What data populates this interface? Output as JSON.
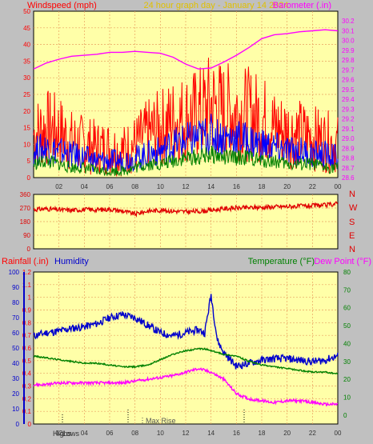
{
  "colors": {
    "plot_bg": "#ffffa8",
    "grid": "#e8a060",
    "frame_bg": "#c0c0c0",
    "wind_gust": "#ff0000",
    "wind_avg": "#0000ff",
    "wind_min": "#008000",
    "barometer": "#ff00ff",
    "direction": "#e00000",
    "rainfall": "#ff0000",
    "humidity": "#0000cc",
    "temperature": "#008000",
    "dew_point": "#ff00ff"
  },
  "top": {
    "left_title": "Windspeed (mph)",
    "center_title": "24 hour graph day - January 14 2024",
    "right_title": "Barometer (.in)"
  },
  "bottom": {
    "left_title_rain": "Rainfall (.in)",
    "left_title_hum": "Humidity",
    "right_title_temp": "Temperature (°F)",
    "right_title_dew": "Dew Point (°F)",
    "annotation_highs": "Highs",
    "annotation_lows": "Lows",
    "annotation_maxrise": "Max Rise"
  },
  "x_tick_labels": [
    "02",
    "04",
    "06",
    "08",
    "10",
    "12",
    "14",
    "16",
    "18",
    "20",
    "22",
    "00"
  ],
  "chart_data": [
    {
      "type": "line",
      "title": "24 hour graph day - January 14 2024",
      "ylabel": "Windspeed (mph)",
      "y2label": "Barometer (.in)",
      "x": [
        0,
        1,
        2,
        3,
        4,
        5,
        6,
        7,
        8,
        9,
        10,
        11,
        12,
        13,
        14,
        15,
        16,
        17,
        18,
        19,
        20,
        21,
        22,
        23,
        24
      ],
      "ylim": [
        0,
        50
      ],
      "yticks": [
        0,
        5,
        10,
        15,
        20,
        25,
        30,
        35,
        40,
        45,
        50
      ],
      "y2lim": [
        28.6,
        30.3
      ],
      "y2ticks": [
        28.6,
        28.7,
        28.8,
        28.9,
        29.0,
        29.1,
        29.2,
        29.3,
        29.4,
        29.5,
        29.6,
        29.7,
        29.8,
        29.9,
        30.0,
        30.1,
        30.2
      ],
      "series": [
        {
          "name": "Wind gust",
          "axis": "left",
          "values": [
            13,
            15,
            14,
            11,
            10,
            9,
            9,
            8,
            10,
            13,
            15,
            17,
            18,
            19,
            22,
            20,
            20,
            19,
            18,
            15,
            14,
            13,
            12,
            11,
            10
          ]
        },
        {
          "name": "Wind average",
          "axis": "left",
          "values": [
            8,
            9,
            8,
            7,
            6,
            5,
            5,
            5,
            6,
            7,
            8,
            10,
            11,
            12,
            13,
            12,
            12,
            11,
            10,
            9,
            8,
            8,
            7,
            7,
            6
          ]
        },
        {
          "name": "Wind minimum",
          "axis": "left",
          "values": [
            4,
            5,
            4,
            3,
            3,
            2,
            2,
            2,
            3,
            4,
            4,
            5,
            6,
            6,
            7,
            6,
            6,
            6,
            5,
            5,
            4,
            4,
            4,
            3,
            3
          ]
        },
        {
          "name": "Barometer",
          "axis": "right",
          "values": [
            29.71,
            29.77,
            29.81,
            29.84,
            29.85,
            29.86,
            29.88,
            29.88,
            29.89,
            29.88,
            29.87,
            29.83,
            29.76,
            29.71,
            29.72,
            29.78,
            29.85,
            29.93,
            30.02,
            30.06,
            30.07,
            30.09,
            30.1,
            30.11,
            30.1
          ]
        }
      ]
    },
    {
      "type": "line",
      "ylabel": "Wind direction",
      "x": [
        0,
        1,
        2,
        3,
        4,
        5,
        6,
        7,
        8,
        9,
        10,
        11,
        12,
        13,
        14,
        15,
        16,
        17,
        18,
        19,
        20,
        21,
        22,
        23,
        24
      ],
      "ylim": [
        0,
        360
      ],
      "yticks": [
        0,
        90,
        180,
        270,
        360
      ],
      "y2ticks": [
        "N",
        "E",
        "S",
        "W",
        "N"
      ],
      "series": [
        {
          "name": "Direction",
          "values": [
            260,
            265,
            258,
            255,
            260,
            258,
            262,
            250,
            230,
            250,
            255,
            250,
            245,
            248,
            255,
            265,
            270,
            272,
            275,
            278,
            280,
            282,
            285,
            288,
            300
          ]
        }
      ]
    },
    {
      "type": "line",
      "ylabel": "Rainfall (.in) / Humidity",
      "y2label": "Temperature (°F) / Dew Point (°F)",
      "x": [
        0,
        1,
        2,
        3,
        4,
        5,
        6,
        7,
        8,
        9,
        10,
        11,
        12,
        13,
        13.5,
        14,
        14.5,
        15,
        16,
        17,
        18,
        19,
        20,
        21,
        22,
        23,
        24
      ],
      "ylim_rain": [
        0,
        1.2
      ],
      "yticks_rain": [
        0,
        0.1,
        0.2,
        0.3,
        0.4,
        0.5,
        0.6,
        0.7,
        0.8,
        0.9,
        1,
        1.1,
        1.2
      ],
      "ylim_humidity": [
        0,
        100
      ],
      "yticks_humidity": [
        0,
        10,
        20,
        30,
        40,
        50,
        60,
        70,
        80,
        90,
        100
      ],
      "y2lim": [
        -5,
        80
      ],
      "y2ticks": [
        0,
        10,
        20,
        30,
        40,
        50,
        60,
        70,
        80
      ],
      "series": [
        {
          "name": "Humidity",
          "axis": "humidity",
          "values": [
            58,
            60,
            61,
            63,
            64,
            66,
            70,
            72,
            70,
            65,
            60,
            58,
            60,
            62,
            60,
            85,
            55,
            47,
            38,
            40,
            42,
            43,
            43,
            42,
            41,
            42,
            45
          ]
        },
        {
          "name": "Temperature",
          "axis": "temp",
          "values": [
            33,
            32,
            31,
            30,
            29,
            29,
            28,
            27,
            27,
            28,
            31,
            34,
            36,
            37,
            37,
            36,
            35,
            34,
            33,
            30,
            28,
            27,
            26,
            25,
            24,
            24,
            23
          ]
        },
        {
          "name": "Dew Point",
          "axis": "temp",
          "values": [
            17,
            17,
            18,
            18,
            18,
            18,
            18,
            18,
            19,
            20,
            21,
            22,
            24,
            26,
            25,
            24,
            22,
            20,
            12,
            9,
            8,
            7,
            8,
            8,
            7,
            6,
            6
          ]
        }
      ]
    }
  ]
}
